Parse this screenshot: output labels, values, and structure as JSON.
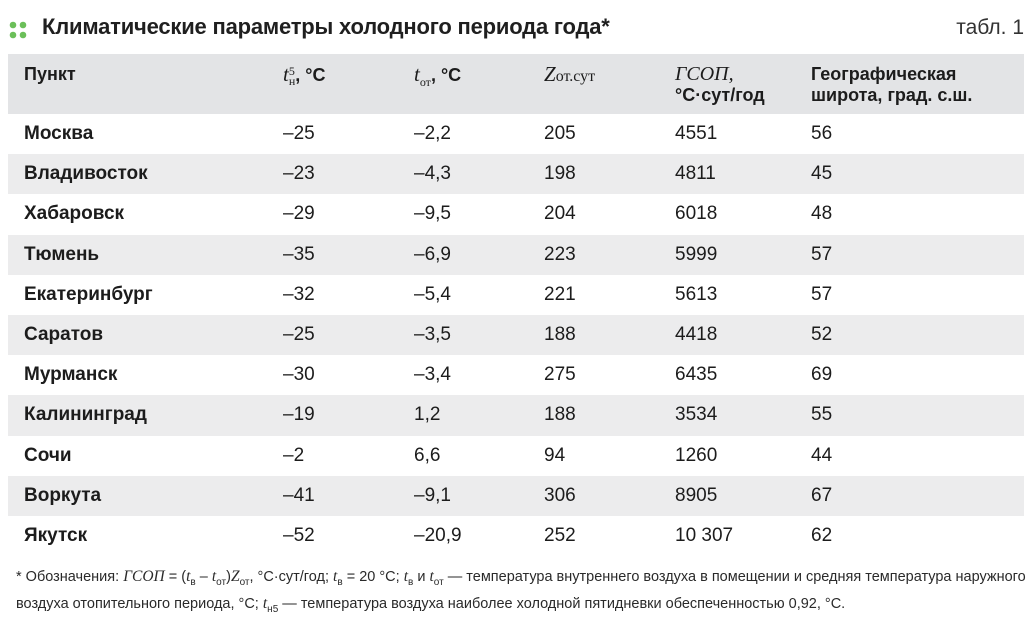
{
  "title": "Климатические параметры холодного периода года*",
  "table_ref": "табл. 1",
  "colors": {
    "accent_dots": "#6bbf59",
    "header_bg": "#e3e4e6",
    "stripe_bg": "#ececed"
  },
  "table": {
    "headers": {
      "city": "Пункт",
      "t5": {
        "base": "t",
        "sup": "5",
        "sub": "н",
        "unit": ", °C"
      },
      "tot": {
        "base": "t",
        "sub": "от",
        "unit": ", °C"
      },
      "zot": {
        "base": "Z",
        "sub": "от.сут"
      },
      "gsop": {
        "line1": "ГСОП,",
        "line2": "°С·сут/год"
      },
      "lat": {
        "line1": "Географическая",
        "line2": "широта, град. с.ш."
      }
    },
    "rows": [
      {
        "city": "Москва",
        "t5": "–25",
        "tot": "–2,2",
        "zot": "205",
        "gsop": "4551",
        "lat": "56"
      },
      {
        "city": "Владивосток",
        "t5": "–23",
        "tot": "–4,3",
        "zot": "198",
        "gsop": "4811",
        "lat": "45"
      },
      {
        "city": "Хабаровск",
        "t5": "–29",
        "tot": "–9,5",
        "zot": "204",
        "gsop": "6018",
        "lat": "48"
      },
      {
        "city": "Тюмень",
        "t5": "–35",
        "tot": "–6,9",
        "zot": "223",
        "gsop": "5999",
        "lat": "57"
      },
      {
        "city": "Екатеринбург",
        "t5": "–32",
        "tot": "–5,4",
        "zot": "221",
        "gsop": "5613",
        "lat": "57"
      },
      {
        "city": "Саратов",
        "t5": "–25",
        "tot": "–3,5",
        "zot": "188",
        "gsop": "4418",
        "lat": "52"
      },
      {
        "city": "Мурманск",
        "t5": "–30",
        "tot": "–3,4",
        "zot": "275",
        "gsop": "6435",
        "lat": "69"
      },
      {
        "city": "Калининград",
        "t5": "–19",
        "tot": "1,2",
        "zot": "188",
        "gsop": "3534",
        "lat": "55"
      },
      {
        "city": "Сочи",
        "t5": "–2",
        "tot": "6,6",
        "zot": "94",
        "gsop": "1260",
        "lat": "44"
      },
      {
        "city": "Воркута",
        "t5": "–41",
        "tot": "–9,1",
        "zot": "306",
        "gsop": "8905",
        "lat": "67"
      },
      {
        "city": "Якутск",
        "t5": "–52",
        "tot": "–20,9",
        "zot": "252",
        "gsop": "10 307",
        "lat": "62"
      }
    ]
  },
  "footnote": {
    "p1": "* Обозначения: ",
    "gsop": "ГСОП",
    "p2": " = (",
    "tv": "t",
    "tv_sub": "в",
    "minus": " – ",
    "tot": "t",
    "tot_sub": "от",
    "p3": ")",
    "z": "Z",
    "z_sub": "от",
    "p4": ", °С·сут/год; ",
    "tv2": "t",
    "tv2_sub": "в",
    "p5": " = 20 °С; ",
    "tv3": "t",
    "tv3_sub": "в",
    "p6": " и ",
    "tot2": "t",
    "tot2_sub": "от",
    "p7": " — температура внутреннего воздуха в помещении и средняя температура наружного воздуха отопительного периода, °С; ",
    "th5": "t",
    "th5_sub": "н5",
    "p8": " — температура воздуха наиболее холодной пятидневки обеспеченностью 0,92, °С."
  }
}
